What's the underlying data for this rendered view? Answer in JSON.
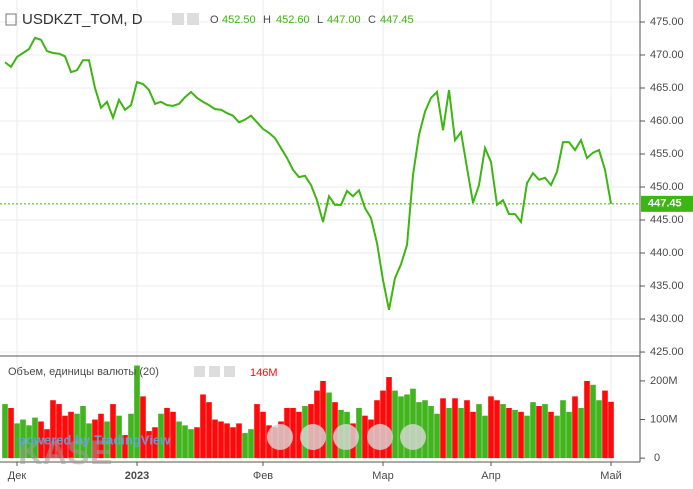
{
  "chart_data": {
    "type": "line",
    "title": "USDKZT_TOM, D",
    "ohlc": {
      "o_label": "O",
      "o": "452.50",
      "h_label": "H",
      "h": "452.60",
      "l_label": "L",
      "l": "447.00",
      "c_label": "C",
      "c": "447.45"
    },
    "watermark": "KASE",
    "powered": "powered by TradingView",
    "categories": [
      null,
      null,
      "Дек",
      null,
      null,
      null,
      null,
      null,
      null,
      null,
      null,
      null,
      null,
      null,
      null,
      null,
      null,
      null,
      null,
      null,
      null,
      null,
      "2023",
      null,
      null,
      null,
      null,
      null,
      null,
      null,
      null,
      null,
      null,
      null,
      null,
      null,
      null,
      null,
      null,
      null,
      null,
      null,
      null,
      "Фев",
      null,
      null,
      null,
      null,
      null,
      null,
      null,
      null,
      null,
      null,
      null,
      null,
      null,
      null,
      null,
      null,
      null,
      null,
      null,
      "Мар",
      null,
      null,
      null,
      null,
      null,
      null,
      null,
      null,
      null,
      null,
      null,
      null,
      null,
      null,
      null,
      null,
      null,
      "Апр",
      null,
      null,
      null,
      null,
      null,
      null,
      null,
      null,
      null,
      null,
      null,
      null,
      null,
      null,
      null,
      null,
      null,
      null,
      null,
      "Май"
    ],
    "series": [
      {
        "name": "USDKZT_TOM",
        "color": "#3db512",
        "values": [
          468.9,
          468.2,
          469.7,
          470.3,
          470.9,
          472.6,
          472.3,
          470.6,
          470.3,
          470.2,
          469.8,
          467.4,
          467.7,
          469.2,
          469.2,
          465.0,
          462.0,
          462.9,
          460.5,
          463.2,
          461.7,
          462.4,
          465.9,
          465.6,
          464.7,
          462.6,
          462.9,
          462.4,
          462.3,
          462.6,
          463.6,
          464.4,
          463.5,
          462.9,
          462.4,
          461.8,
          461.7,
          461.2,
          460.8,
          459.8,
          460.2,
          460.8,
          459.8,
          458.8,
          458.2,
          457.4,
          455.9,
          454.4,
          452.6,
          451.5,
          451.7,
          450.3,
          448.0,
          444.7,
          448.6,
          447.3,
          447.3,
          449.4,
          448.6,
          449.5,
          446.8,
          445.3,
          441.5,
          435.9,
          431.4,
          436.2,
          438.3,
          441.2,
          451.8,
          457.9,
          461.4,
          463.5,
          464.4,
          458.6,
          464.7,
          457.1,
          458.3,
          452.9,
          447.6,
          450.3,
          455.9,
          453.8,
          447.3,
          448.0,
          445.9,
          445.9,
          444.7,
          450.6,
          452.1,
          451.1,
          451.4,
          450.3,
          452.3,
          456.8,
          456.8,
          455.6,
          457.1,
          454.4,
          455.2,
          455.6,
          452.6,
          447.45
        ]
      }
    ],
    "ylim": [
      424.55,
      478.33
    ],
    "yticks": [
      {
        "value": 425,
        "label": "425.00"
      },
      {
        "value": 430,
        "label": "430.00"
      },
      {
        "value": 435,
        "label": "435.00"
      },
      {
        "value": 440,
        "label": "440.00"
      },
      {
        "value": 445,
        "label": "445.00"
      },
      {
        "value": 450,
        "label": "450.00"
      },
      {
        "value": 455,
        "label": "455.00"
      },
      {
        "value": 460,
        "label": "460.00"
      },
      {
        "value": 465,
        "label": "465.00"
      },
      {
        "value": 470,
        "label": "470.00"
      },
      {
        "value": 475,
        "label": "475.00"
      }
    ],
    "grid": true,
    "volume": {
      "name": "Объем, единицы валюты (20)",
      "up_color": "#41b41e",
      "down_color": "#ff0a0a",
      "values": [
        140,
        130,
        90,
        100,
        85,
        105,
        95,
        75,
        150,
        140,
        110,
        120,
        115,
        135,
        90,
        100,
        115,
        95,
        140,
        110,
        60,
        115,
        240,
        160,
        70,
        80,
        115,
        130,
        120,
        95,
        85,
        75,
        80,
        165,
        145,
        100,
        95,
        90,
        80,
        90,
        65,
        75,
        140,
        120,
        85,
        80,
        95,
        130,
        130,
        120,
        135,
        140,
        175,
        200,
        170,
        145,
        125,
        120,
        90,
        130,
        110,
        100,
        150,
        175,
        210,
        175,
        160,
        165,
        180,
        145,
        150,
        135,
        115,
        155,
        130,
        155,
        130,
        150,
        120,
        140,
        110,
        160,
        150,
        140,
        130,
        125,
        120,
        110,
        145,
        135,
        140,
        120,
        110,
        150,
        120,
        160,
        130,
        200,
        190,
        150,
        175,
        146
      ],
      "value_label": "146M",
      "ylim": [
        -10,
        262
      ],
      "yticks": [
        0,
        {
          "value": 100,
          "label": "100M"
        },
        {
          "value": 200,
          "label": "200M"
        }
      ]
    }
  }
}
